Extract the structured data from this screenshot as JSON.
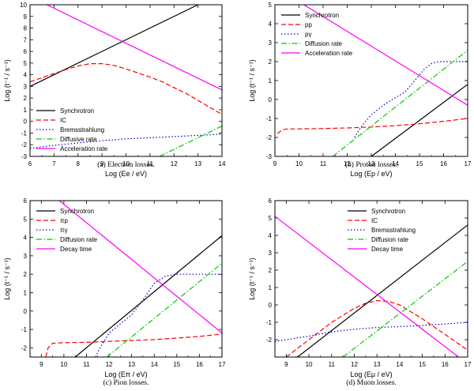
{
  "chart_data": [
    {
      "type": "line",
      "panel": "a",
      "caption": "(a) Electron losses.",
      "xlabel": "Log (Ee / eV)",
      "ylabel": "Log (t⁻¹ / s⁻¹)",
      "xlim": [
        6,
        14
      ],
      "ylim": [
        -3,
        10
      ],
      "xticks": [
        6,
        7,
        8,
        9,
        10,
        11,
        12,
        13,
        14
      ],
      "yticks": [
        -3,
        -2,
        -1,
        0,
        1,
        2,
        3,
        4,
        5,
        6,
        7,
        8,
        9,
        10
      ],
      "legend_position": "lower-left",
      "series": [
        {
          "name": "Synchrotron",
          "color": "#000000",
          "dash": "solid",
          "x": [
            6,
            13
          ],
          "y": [
            3.0,
            10.0
          ]
        },
        {
          "name": "IC",
          "color": "#ff0000",
          "dash": "dashed",
          "x": [
            6,
            6.5,
            7,
            7.5,
            8,
            8.5,
            9,
            9.5,
            10,
            10.5,
            11,
            11.5,
            12,
            12.5,
            13,
            13.5,
            14
          ],
          "y": [
            3.4,
            3.75,
            4.1,
            4.45,
            4.75,
            4.95,
            4.95,
            4.8,
            4.5,
            4.15,
            3.8,
            3.4,
            2.9,
            2.4,
            1.8,
            1.2,
            0.6
          ]
        },
        {
          "name": "Bremsstrahlung",
          "color": "#0000cc",
          "dash": "dotted",
          "x": [
            6,
            7,
            8,
            9,
            10,
            11,
            12,
            13,
            14
          ],
          "y": [
            -2.3,
            -2.05,
            -1.85,
            -1.65,
            -1.5,
            -1.4,
            -1.3,
            -1.2,
            -1.1
          ]
        },
        {
          "name": "Diffusive rate",
          "color": "#00cc00",
          "dash": "dashdot",
          "x": [
            11.4,
            14
          ],
          "y": [
            -3.0,
            -0.4
          ]
        },
        {
          "name": "Acceleration rate",
          "color": "#ff00ff",
          "dash": "solid",
          "x": [
            6.7,
            14
          ],
          "y": [
            10.0,
            2.7
          ]
        }
      ]
    },
    {
      "type": "line",
      "panel": "b",
      "caption": "(b) Proton losses.",
      "xlabel": "Log (Ep / eV)",
      "ylabel": "Log (t⁻¹ / s⁻¹)",
      "xlim": [
        9,
        17
      ],
      "ylim": [
        -3,
        5
      ],
      "xticks": [
        9,
        10,
        11,
        12,
        13,
        14,
        15,
        16,
        17
      ],
      "yticks": [
        -3,
        -2,
        -1,
        0,
        1,
        2,
        3,
        4,
        5
      ],
      "legend_position": "top-left",
      "series": [
        {
          "name": "Synchrotron",
          "color": "#000000",
          "dash": "solid",
          "x": [
            13,
            17
          ],
          "y": [
            -3.0,
            0.8
          ]
        },
        {
          "name": "pp",
          "color": "#ff0000",
          "dash": "dashed",
          "x": [
            9.1,
            9.3,
            9.5,
            10,
            11,
            12,
            13,
            14,
            15,
            16,
            17
          ],
          "y": [
            -1.8,
            -1.6,
            -1.55,
            -1.55,
            -1.53,
            -1.5,
            -1.45,
            -1.38,
            -1.28,
            -1.15,
            -1.0
          ]
        },
        {
          "name": "pγ",
          "color": "#0000cc",
          "dash": "dotted",
          "x": [
            12.3,
            12.6,
            13,
            13.5,
            14,
            14.4,
            14.8,
            15.2,
            15.5,
            15.8,
            16.2,
            17
          ],
          "y": [
            -2.0,
            -1.4,
            -0.8,
            -0.3,
            0.1,
            0.4,
            1.0,
            1.6,
            1.9,
            2.0,
            2.0,
            2.0
          ]
        },
        {
          "name": "Diffusion rate",
          "color": "#00cc00",
          "dash": "dashdot",
          "x": [
            11.4,
            17
          ],
          "y": [
            -3.0,
            2.6
          ]
        },
        {
          "name": "Acceleration rate",
          "color": "#ff00ff",
          "dash": "solid",
          "x": [
            10.2,
            17
          ],
          "y": [
            5.0,
            -0.3
          ]
        }
      ]
    },
    {
      "type": "line",
      "panel": "c",
      "caption": "(c) Pion losses.",
      "xlabel": "Log (Eπ / eV)",
      "ylabel": "Log (t⁻¹ / s⁻¹)",
      "xlim": [
        8.5,
        17
      ],
      "ylim": [
        -2.5,
        6
      ],
      "xticks": [
        9,
        10,
        11,
        12,
        13,
        14,
        15,
        16,
        17
      ],
      "yticks": [
        -2,
        -1,
        0,
        1,
        2,
        3,
        4,
        5,
        6
      ],
      "legend_position": "top-left",
      "series": [
        {
          "name": "Synchrotron",
          "color": "#000000",
          "dash": "solid",
          "x": [
            10.5,
            17
          ],
          "y": [
            -2.5,
            4.1
          ]
        },
        {
          "name": "πp",
          "color": "#ff0000",
          "dash": "dashed",
          "x": [
            9.2,
            9.3,
            9.5,
            10,
            11,
            12,
            13,
            14,
            15,
            16,
            17
          ],
          "y": [
            -2.5,
            -2.0,
            -1.75,
            -1.72,
            -1.7,
            -1.65,
            -1.6,
            -1.55,
            -1.47,
            -1.38,
            -1.25
          ]
        },
        {
          "name": "πγ",
          "color": "#0000cc",
          "dash": "dotted",
          "x": [
            11.4,
            11.6,
            12,
            12.5,
            13,
            13.5,
            14,
            14.5,
            15,
            15.5,
            16,
            17
          ],
          "y": [
            -2.5,
            -2.0,
            -1.2,
            -0.7,
            -0.2,
            0.6,
            1.5,
            1.9,
            2.0,
            2.0,
            2.0,
            2.0
          ]
        },
        {
          "name": "Diffusion rate",
          "color": "#00cc00",
          "dash": "dashdot",
          "x": [
            11.9,
            17
          ],
          "y": [
            -2.5,
            2.6
          ]
        },
        {
          "name": "Decay time",
          "color": "#ff00ff",
          "dash": "solid",
          "x": [
            9.8,
            17
          ],
          "y": [
            6.0,
            -1.2
          ]
        }
      ]
    },
    {
      "type": "line",
      "panel": "d",
      "caption": "(d) Muon losses.",
      "xlabel": "Log (Eμ / eV)",
      "ylabel": "Log (t⁻¹ / s⁻¹)",
      "xlim": [
        8.5,
        17
      ],
      "ylim": [
        -3,
        6
      ],
      "xticks": [
        9,
        10,
        11,
        12,
        13,
        14,
        15,
        16,
        17
      ],
      "yticks": [
        -2,
        -1,
        0,
        1,
        2,
        3,
        4,
        5,
        6
      ],
      "legend_position": "top-right",
      "series": [
        {
          "name": "Synchrotron",
          "color": "#000000",
          "dash": "solid",
          "x": [
            9.5,
            17
          ],
          "y": [
            -3.0,
            4.6
          ]
        },
        {
          "name": "IC",
          "color": "#ff0000",
          "dash": "dashed",
          "x": [
            9.0,
            10,
            11,
            12,
            12.5,
            13,
            13.5,
            14,
            15,
            16,
            17
          ],
          "y": [
            -3.0,
            -2.0,
            -1.0,
            -0.2,
            0.1,
            0.25,
            0.2,
            0.0,
            -0.8,
            -1.7,
            -2.6
          ]
        },
        {
          "name": "Bremsstrahlung",
          "color": "#0000cc",
          "dash": "dotted",
          "x": [
            8.5,
            10,
            11,
            12,
            13,
            14,
            15,
            16,
            17
          ],
          "y": [
            -2.1,
            -1.8,
            -1.55,
            -1.4,
            -1.3,
            -1.25,
            -1.18,
            -1.1,
            -1.0
          ]
        },
        {
          "name": "Diffusion rate",
          "color": "#00cc00",
          "dash": "dashdot",
          "x": [
            11.5,
            17
          ],
          "y": [
            -3.0,
            2.5
          ]
        },
        {
          "name": "Decay time",
          "color": "#ff00ff",
          "dash": "solid",
          "x": [
            8.5,
            16.6
          ],
          "y": [
            5.1,
            -3.0
          ]
        }
      ]
    }
  ]
}
